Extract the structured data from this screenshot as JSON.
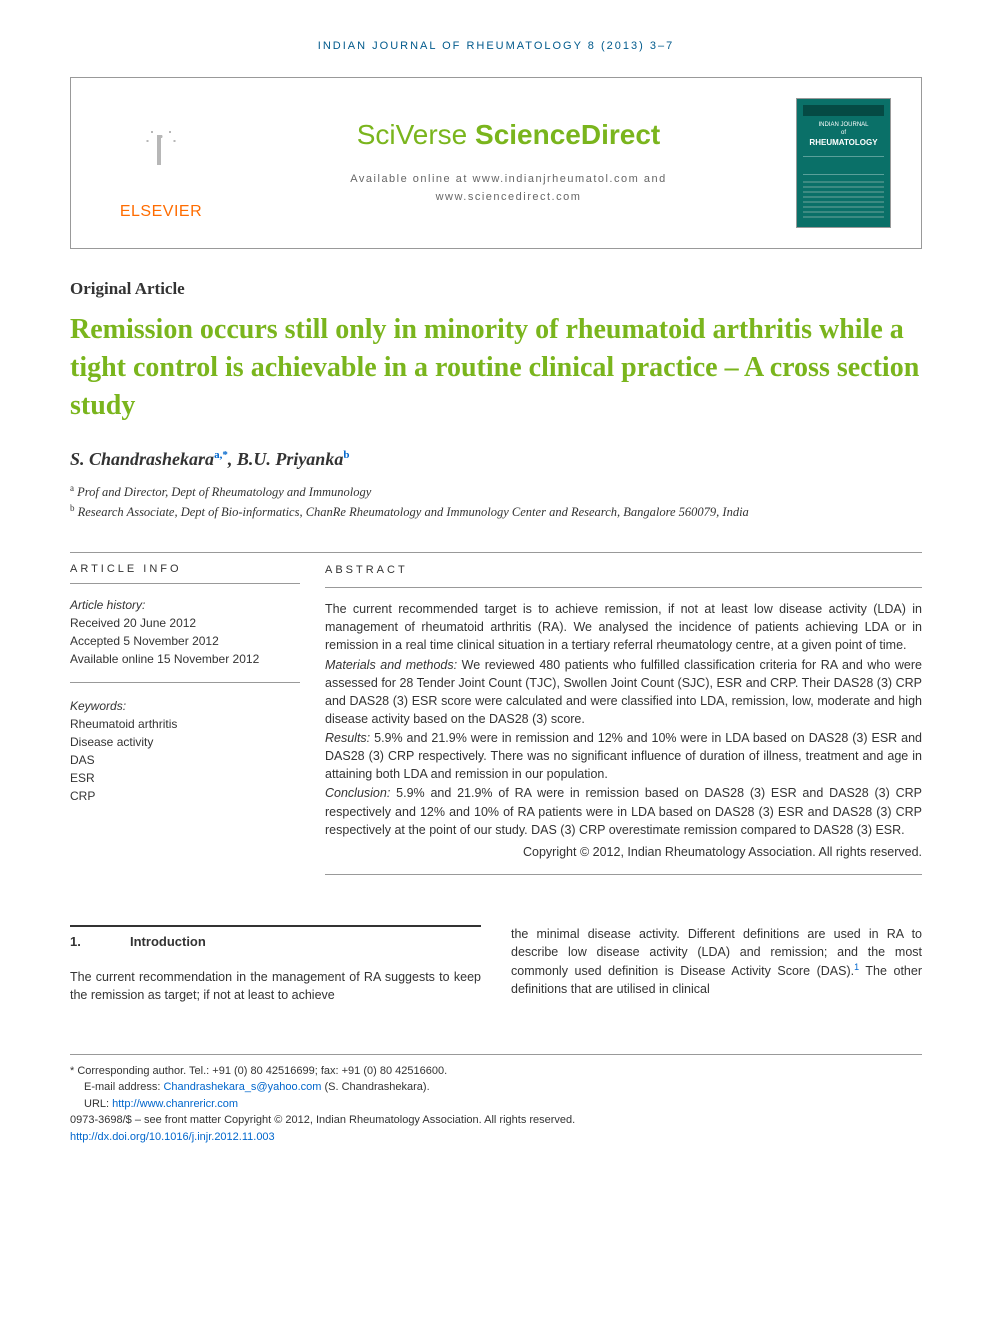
{
  "running_head": "INDIAN JOURNAL OF RHEUMATOLOGY 8 (2013) 3–7",
  "header": {
    "publisher_label": "ELSEVIER",
    "sciverse_prefix": "SciVerse",
    "sciverse_main": " ScienceDirect",
    "available_line1": "Available online at www.indianjrheumatol.com and",
    "available_line2": "www.sciencedirect.com",
    "cover_title_small": "INDIAN JOURNAL",
    "cover_title_of": "of",
    "cover_title_big": "RHEUMATOLOGY"
  },
  "article": {
    "type": "Original Article",
    "title": "Remission occurs still only in minority of rheumatoid arthritis while a tight control is achievable in a routine clinical practice – A cross section study",
    "authors_html": "S. Chandrashekara",
    "author1_sup": "a,*",
    "author2": "B.U. Priyanka",
    "author2_sup": "b",
    "affil_a_sup": "a",
    "affil_a": "Prof and Director, Dept of Rheumatology and Immunology",
    "affil_b_sup": "b",
    "affil_b": "Research Associate, Dept of Bio-informatics, ChanRe Rheumatology and Immunology Center and Research, Bangalore 560079, India"
  },
  "info": {
    "head": "ARTICLE INFO",
    "history_label": "Article history:",
    "received": "Received 20 June 2012",
    "accepted": "Accepted 5 November 2012",
    "online": "Available online 15 November 2012",
    "keywords_label": "Keywords:",
    "kw1": "Rheumatoid arthritis",
    "kw2": "Disease activity",
    "kw3": "DAS",
    "kw4": "ESR",
    "kw5": "CRP"
  },
  "abstract": {
    "head": "ABSTRACT",
    "intro": "The current recommended target is to achieve remission, if not at least low disease activity (LDA) in management of rheumatoid arthritis (RA). We analysed the incidence of patients achieving LDA or in remission in a real time clinical situation in a tertiary referral rheumatology centre, at a given point of time.",
    "methods_label": "Materials and methods:",
    "methods": " We reviewed 480 patients who fulfilled classification criteria for RA and who were assessed for 28 Tender Joint Count (TJC), Swollen Joint Count (SJC), ESR and CRP. Their DAS28 (3) CRP and DAS28 (3) ESR score were calculated and were classified into LDA, remission, low, moderate and high disease activity based on the DAS28 (3) score.",
    "results_label": "Results:",
    "results": " 5.9% and 21.9% were in remission and 12% and 10% were in LDA based on DAS28 (3) ESR and DAS28 (3) CRP respectively. There was no significant influence of duration of illness, treatment and age in attaining both LDA and remission in our population.",
    "conclusion_label": "Conclusion:",
    "conclusion": " 5.9% and 21.9% of RA were in remission based on DAS28 (3) ESR and DAS28 (3) CRP respectively and 12% and 10% of RA patients were in LDA based on DAS28 (3) ESR and DAS28 (3) CRP respectively at the point of our study. DAS (3) CRP overestimate remission compared to DAS28 (3) ESR.",
    "copyright": "Copyright © 2012, Indian Rheumatology Association. All rights reserved."
  },
  "body": {
    "section_num": "1.",
    "section_title": "Introduction",
    "col1": "The current recommendation in the management of RA suggests to keep the remission as target; if not at least to achieve",
    "col2_a": "the minimal disease activity. Different definitions are used in RA to describe low disease activity (LDA) and remission; and the most commonly used definition is Disease Activity Score (DAS).",
    "col2_ref": "1",
    "col2_b": " The other definitions that are utilised in clinical"
  },
  "footnotes": {
    "corr_label": "* Corresponding author.",
    "corr_tel": " Tel.: +91 (0) 80 42516699; fax: +91 (0) 80 42516600.",
    "email_label": "E-mail address: ",
    "email": "Chandrashekara_s@yahoo.com",
    "email_tail": " (S. Chandrashekara).",
    "url_label": "URL: ",
    "url": "http://www.chanrericr.com",
    "issn": "0973-3698/$ – see front matter Copyright © 2012, Indian Rheumatology Association. All rights reserved.",
    "doi": "http://dx.doi.org/10.1016/j.injr.2012.11.003"
  },
  "colors": {
    "green": "#7ab51d",
    "orange": "#ff6c00",
    "blue": "#005a8c",
    "link": "#0066cc",
    "teal": "#0a7068"
  }
}
